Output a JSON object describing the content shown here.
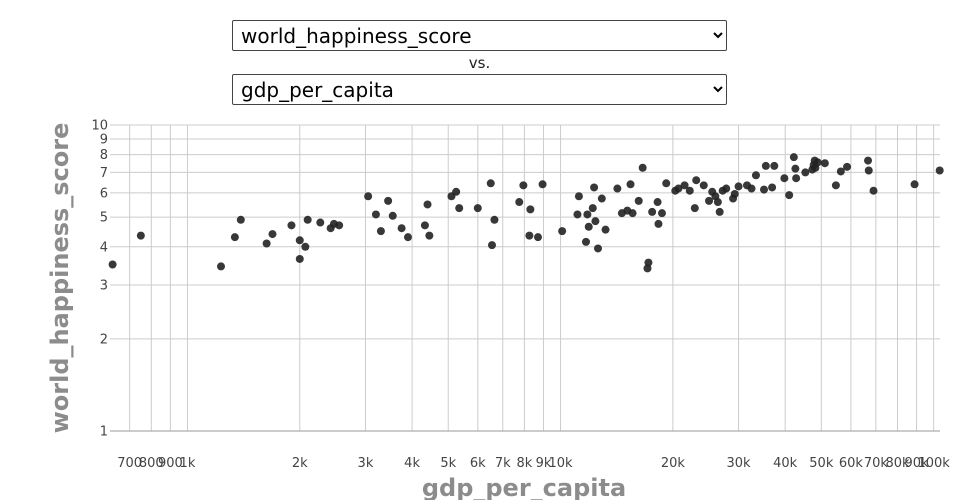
{
  "controls": {
    "y_options": [
      "world_happiness_score",
      "gdp_per_capita"
    ],
    "y_selected": "world_happiness_score",
    "vs_label": "vs.",
    "x_options": [
      "gdp_per_capita",
      "world_happiness_score"
    ],
    "x_selected": "gdp_per_capita"
  },
  "colors": {
    "points": "#222222",
    "grid": "#cccccc",
    "axis_title": "#8c8c8c"
  },
  "chart_data": {
    "type": "scatter",
    "xlabel": "gdp_per_capita",
    "ylabel": "world_happiness_score",
    "x_scale": "log",
    "y_scale": "log",
    "xlim": [
      620,
      104000
    ],
    "ylim": [
      1,
      10
    ],
    "grid": true,
    "x_ticks": [
      {
        "v": 700,
        "label": "700"
      },
      {
        "v": 800,
        "label": "800"
      },
      {
        "v": 900,
        "label": "900"
      },
      {
        "v": 1000,
        "label": "1k"
      },
      {
        "v": 2000,
        "label": "2k"
      },
      {
        "v": 3000,
        "label": "3k"
      },
      {
        "v": 4000,
        "label": "4k"
      },
      {
        "v": 5000,
        "label": "5k"
      },
      {
        "v": 6000,
        "label": "6k"
      },
      {
        "v": 7000,
        "label": "7k"
      },
      {
        "v": 8000,
        "label": "8k"
      },
      {
        "v": 9000,
        "label": "9k"
      },
      {
        "v": 10000,
        "label": "10k"
      },
      {
        "v": 20000,
        "label": "20k"
      },
      {
        "v": 30000,
        "label": "30k"
      },
      {
        "v": 40000,
        "label": "40k"
      },
      {
        "v": 50000,
        "label": "50k"
      },
      {
        "v": 60000,
        "label": "60k"
      },
      {
        "v": 70000,
        "label": "70k"
      },
      {
        "v": 80000,
        "label": "80k"
      },
      {
        "v": 90000,
        "label": "90k"
      },
      {
        "v": 100000,
        "label": "100k"
      }
    ],
    "y_ticks": [
      {
        "v": 1,
        "label": "1"
      },
      {
        "v": 2,
        "label": "2"
      },
      {
        "v": 3,
        "label": "3"
      },
      {
        "v": 4,
        "label": "4"
      },
      {
        "v": 5,
        "label": "5"
      },
      {
        "v": 6,
        "label": "6"
      },
      {
        "v": 7,
        "label": "7"
      },
      {
        "v": 8,
        "label": "8"
      },
      {
        "v": 9,
        "label": "9"
      },
      {
        "v": 10,
        "label": "10"
      }
    ],
    "points": [
      [
        630,
        3.5
      ],
      [
        750,
        4.35
      ],
      [
        1230,
        3.45
      ],
      [
        1340,
        4.3
      ],
      [
        1390,
        4.9
      ],
      [
        1630,
        4.1
      ],
      [
        1690,
        4.4
      ],
      [
        1900,
        4.7
      ],
      [
        2000,
        4.2
      ],
      [
        2000,
        3.65
      ],
      [
        2070,
        4.0
      ],
      [
        2100,
        4.9
      ],
      [
        2270,
        4.8
      ],
      [
        2420,
        4.6
      ],
      [
        2470,
        4.75
      ],
      [
        2550,
        4.7
      ],
      [
        3050,
        5.85
      ],
      [
        3200,
        5.1
      ],
      [
        3300,
        4.5
      ],
      [
        3450,
        5.65
      ],
      [
        3550,
        5.05
      ],
      [
        3750,
        4.6
      ],
      [
        3900,
        4.3
      ],
      [
        4330,
        4.7
      ],
      [
        4400,
        5.5
      ],
      [
        4450,
        4.35
      ],
      [
        5100,
        5.85
      ],
      [
        5250,
        6.05
      ],
      [
        5350,
        5.35
      ],
      [
        6000,
        5.35
      ],
      [
        6500,
        6.45
      ],
      [
        6550,
        4.05
      ],
      [
        6650,
        4.9
      ],
      [
        7750,
        5.6
      ],
      [
        7950,
        6.35
      ],
      [
        8250,
        4.35
      ],
      [
        8300,
        5.3
      ],
      [
        8700,
        4.3
      ],
      [
        8950,
        6.4
      ],
      [
        10100,
        4.5
      ],
      [
        11100,
        5.1
      ],
      [
        11200,
        5.85
      ],
      [
        11700,
        4.15
      ],
      [
        11800,
        5.1
      ],
      [
        11900,
        4.65
      ],
      [
        12200,
        5.35
      ],
      [
        12300,
        6.25
      ],
      [
        12400,
        4.85
      ],
      [
        12600,
        3.95
      ],
      [
        12900,
        5.75
      ],
      [
        13200,
        4.55
      ],
      [
        14200,
        6.2
      ],
      [
        14600,
        5.15
      ],
      [
        15100,
        5.25
      ],
      [
        15400,
        6.4
      ],
      [
        15600,
        5.15
      ],
      [
        16200,
        5.65
      ],
      [
        16600,
        7.25
      ],
      [
        17100,
        3.4
      ],
      [
        17200,
        3.55
      ],
      [
        17600,
        5.2
      ],
      [
        18200,
        5.6
      ],
      [
        18300,
        4.75
      ],
      [
        18700,
        5.15
      ],
      [
        19200,
        6.45
      ],
      [
        20300,
        6.1
      ],
      [
        20700,
        6.2
      ],
      [
        21500,
        6.35
      ],
      [
        22200,
        6.1
      ],
      [
        22900,
        5.35
      ],
      [
        23100,
        6.6
      ],
      [
        24200,
        6.35
      ],
      [
        25000,
        5.65
      ],
      [
        25500,
        6.05
      ],
      [
        26000,
        5.85
      ],
      [
        26400,
        5.6
      ],
      [
        26700,
        5.2
      ],
      [
        27200,
        6.1
      ],
      [
        27800,
        6.2
      ],
      [
        29000,
        5.75
      ],
      [
        29300,
        5.95
      ],
      [
        30000,
        6.3
      ],
      [
        31600,
        6.35
      ],
      [
        32500,
        6.2
      ],
      [
        33400,
        6.85
      ],
      [
        35100,
        6.15
      ],
      [
        35500,
        7.35
      ],
      [
        36900,
        6.25
      ],
      [
        37400,
        7.35
      ],
      [
        39800,
        6.7
      ],
      [
        41000,
        5.9
      ],
      [
        42200,
        7.85
      ],
      [
        42600,
        7.2
      ],
      [
        42800,
        6.7
      ],
      [
        45300,
        7.0
      ],
      [
        47300,
        7.15
      ],
      [
        47700,
        7.4
      ],
      [
        48000,
        7.65
      ],
      [
        48200,
        7.25
      ],
      [
        48900,
        7.55
      ],
      [
        51100,
        7.5
      ],
      [
        54700,
        6.35
      ],
      [
        56400,
        7.05
      ],
      [
        58600,
        7.3
      ],
      [
        66700,
        7.65
      ],
      [
        67000,
        7.1
      ],
      [
        69000,
        6.1
      ],
      [
        88900,
        6.4
      ],
      [
        103800,
        7.1
      ]
    ]
  }
}
